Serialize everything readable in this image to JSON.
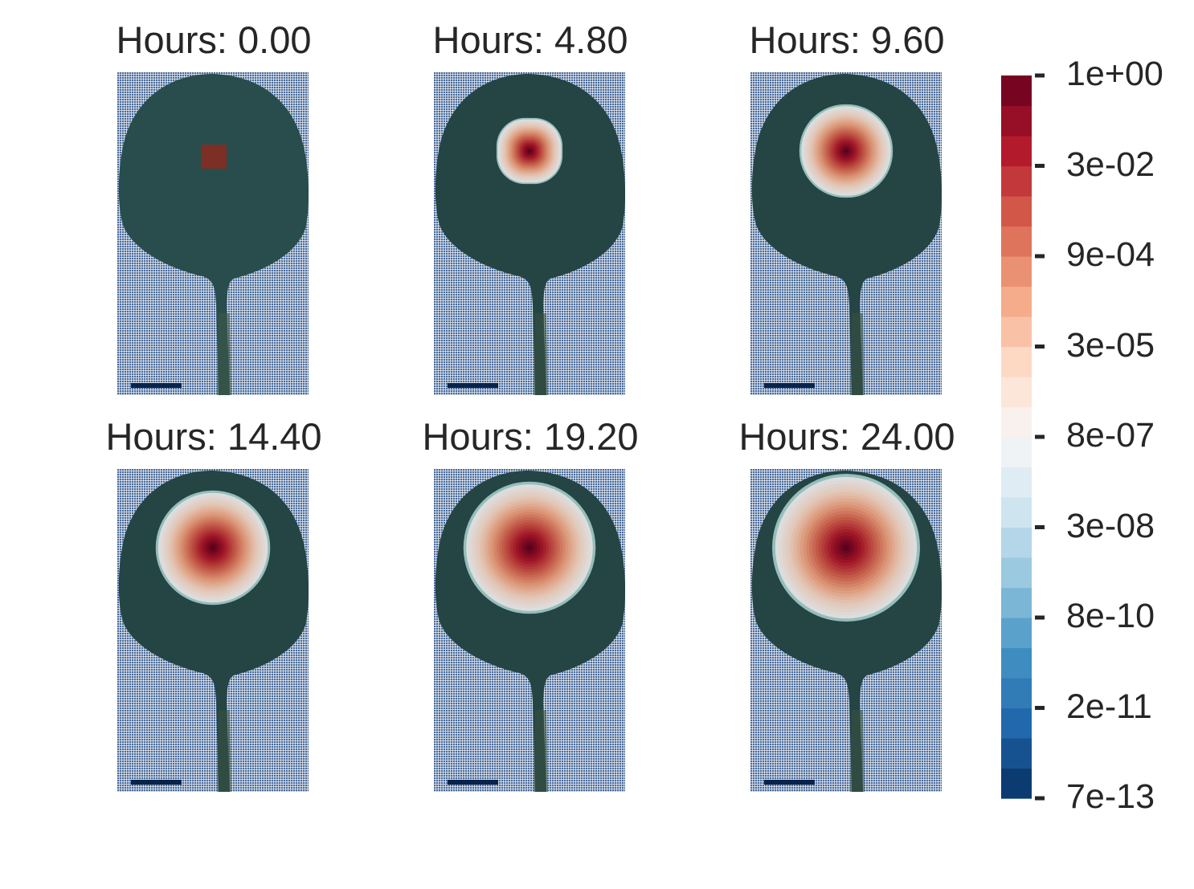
{
  "chart_data": {
    "type": "heatmap",
    "panels": [
      {
        "title": "Hours: 0.00",
        "hours": 0.0
      },
      {
        "title": "Hours: 4.80",
        "hours": 4.8
      },
      {
        "title": "Hours: 9.60",
        "hours": 9.6
      },
      {
        "title": "Hours: 14.40",
        "hours": 14.4
      },
      {
        "title": "Hours: 19.20",
        "hours": 19.2
      },
      {
        "title": "Hours: 24.00",
        "hours": 24.0
      }
    ],
    "colorbar": {
      "scale": "log",
      "colormap": "RdBu_r",
      "tick_labels": [
        "1e+00",
        "3e-02",
        "9e-04",
        "3e-05",
        "8e-07",
        "3e-08",
        "8e-10",
        "2e-11",
        "7e-13"
      ],
      "range": [
        7e-13,
        1.0
      ],
      "levels": 24
    },
    "background_color": "#284d4c",
    "grid_color": "#4a6a98",
    "scale_bar_color": "#08244a"
  }
}
